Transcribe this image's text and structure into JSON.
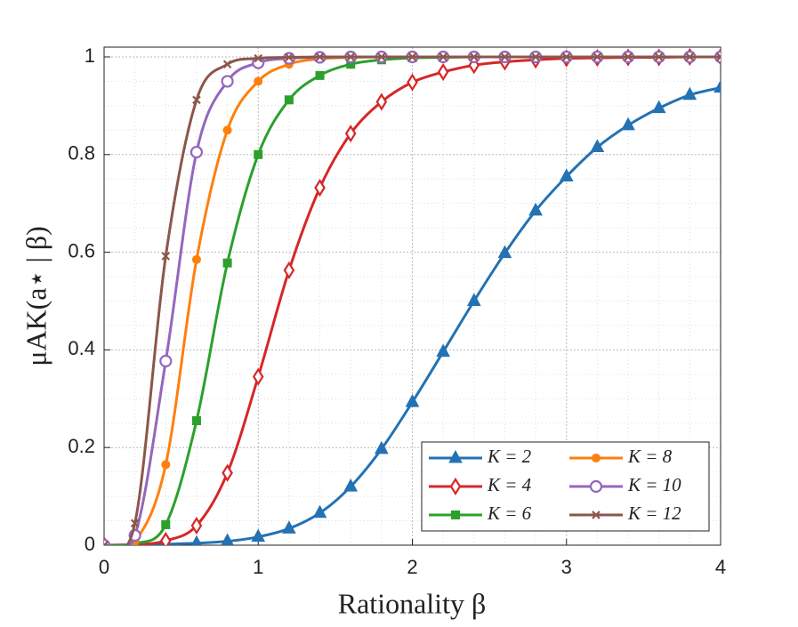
{
  "chart_data": {
    "type": "line",
    "x_label": "Rationality β",
    "y_label": "μAK(a⋆ | β)",
    "x": [
      0,
      0.2,
      0.4,
      0.6,
      0.8,
      1.0,
      1.2,
      1.4,
      1.6,
      1.8,
      2.0,
      2.2,
      2.4,
      2.6,
      2.8,
      3.0,
      3.2,
      3.4,
      3.6,
      3.8,
      4.0
    ],
    "xlim": [
      0,
      4
    ],
    "ylim": [
      0,
      1.02
    ],
    "xticks": [
      0,
      1,
      2,
      3,
      4
    ],
    "yticks": [
      0,
      0.2,
      0.4,
      0.6,
      0.8,
      1
    ],
    "grid": true,
    "legend_position": "lower right",
    "series": [
      {
        "name": "K = 2",
        "color": "#2272b4",
        "marker": "triangle",
        "values": [
          0,
          0.001,
          0.002,
          0.004,
          0.008,
          0.017,
          0.034,
          0.066,
          0.12,
          0.197,
          0.293,
          0.396,
          0.5,
          0.598,
          0.685,
          0.755,
          0.815,
          0.86,
          0.895,
          0.922,
          0.937
        ]
      },
      {
        "name": "K = 4",
        "color": "#d62728",
        "marker": "diamond",
        "values": [
          0,
          0.001,
          0.009,
          0.04,
          0.148,
          0.345,
          0.563,
          0.732,
          0.843,
          0.908,
          0.948,
          0.969,
          0.983,
          0.99,
          0.994,
          0.997,
          0.998,
          0.999,
          0.999,
          1.0,
          1.0
        ]
      },
      {
        "name": "K = 6",
        "color": "#2ca02c",
        "marker": "square",
        "values": [
          0,
          0.003,
          0.042,
          0.255,
          0.578,
          0.8,
          0.912,
          0.962,
          0.985,
          0.994,
          0.998,
          0.999,
          1.0,
          1.0,
          1.0,
          1.0,
          1.0,
          1.0,
          1.0,
          1.0,
          1.0
        ]
      },
      {
        "name": "K = 8",
        "color": "#ff7f0e",
        "marker": "dot",
        "values": [
          0,
          0.008,
          0.165,
          0.585,
          0.85,
          0.95,
          0.985,
          0.996,
          0.999,
          1.0,
          1.0,
          1.0,
          1.0,
          1.0,
          1.0,
          1.0,
          1.0,
          1.0,
          1.0,
          1.0,
          1.0
        ]
      },
      {
        "name": "K = 10",
        "color": "#9467bd",
        "marker": "circle",
        "values": [
          0,
          0.02,
          0.377,
          0.805,
          0.95,
          0.988,
          0.997,
          0.999,
          1.0,
          1.0,
          1.0,
          1.0,
          1.0,
          1.0,
          1.0,
          1.0,
          1.0,
          1.0,
          1.0,
          1.0,
          1.0
        ]
      },
      {
        "name": "K = 12",
        "color": "#8c564b",
        "marker": "x",
        "values": [
          0,
          0.045,
          0.592,
          0.912,
          0.985,
          0.997,
          0.999,
          1.0,
          1.0,
          1.0,
          1.0,
          1.0,
          1.0,
          1.0,
          1.0,
          1.0,
          1.0,
          1.0,
          1.0,
          1.0,
          1.0
        ]
      }
    ]
  }
}
